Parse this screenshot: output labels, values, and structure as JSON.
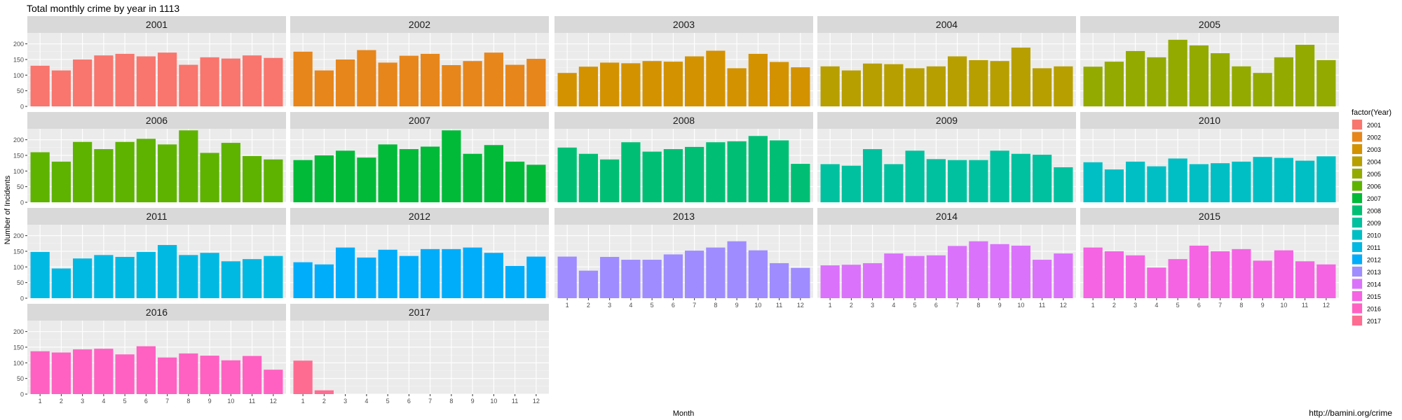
{
  "chart_data": {
    "type": "bar",
    "title": "Total monthly crime by year in 1113",
    "xlabel": "Month",
    "ylabel": "Number of Incidents",
    "source": "http://bamini.org/crime",
    "legend": {
      "title": "factor(Year)",
      "placement": "right"
    },
    "x_ticks": [
      "1",
      "2",
      "3",
      "4",
      "5",
      "6",
      "7",
      "8",
      "9",
      "10",
      "11",
      "12"
    ],
    "y_ticks": [
      0,
      50,
      100,
      150,
      200
    ],
    "ylim": [
      0,
      235
    ],
    "grid": true,
    "facets": [
      {
        "year": "2001",
        "color": "#F8766D",
        "values": [
          130,
          115,
          150,
          163,
          168,
          160,
          172,
          133,
          157,
          153,
          163,
          155
        ]
      },
      {
        "year": "2002",
        "color": "#E7861B",
        "values": [
          175,
          115,
          150,
          180,
          140,
          162,
          168,
          132,
          145,
          172,
          133,
          152
        ]
      },
      {
        "year": "2003",
        "color": "#D39200",
        "values": [
          107,
          127,
          140,
          138,
          145,
          143,
          160,
          178,
          122,
          168,
          142,
          125
        ]
      },
      {
        "year": "2004",
        "color": "#B79F00",
        "values": [
          128,
          115,
          137,
          135,
          122,
          128,
          160,
          148,
          145,
          188,
          122,
          128
        ]
      },
      {
        "year": "2005",
        "color": "#93AA00",
        "values": [
          127,
          143,
          177,
          157,
          213,
          195,
          170,
          128,
          107,
          157,
          197,
          148
        ]
      },
      {
        "year": "2006",
        "color": "#5EB300",
        "values": [
          160,
          130,
          193,
          170,
          193,
          203,
          185,
          230,
          158,
          190,
          148,
          137
        ]
      },
      {
        "year": "2007",
        "color": "#00BA38",
        "values": [
          135,
          150,
          165,
          143,
          185,
          170,
          178,
          230,
          155,
          183,
          130,
          120
        ]
      },
      {
        "year": "2008",
        "color": "#00BF74",
        "values": [
          175,
          155,
          137,
          192,
          162,
          170,
          177,
          192,
          195,
          212,
          198,
          123
        ]
      },
      {
        "year": "2009",
        "color": "#00C19F",
        "values": [
          122,
          117,
          170,
          122,
          165,
          138,
          135,
          135,
          165,
          155,
          152,
          112
        ]
      },
      {
        "year": "2010",
        "color": "#00BFC4",
        "values": [
          128,
          105,
          130,
          115,
          140,
          122,
          125,
          130,
          145,
          142,
          133,
          147
        ]
      },
      {
        "year": "2011",
        "color": "#00B9E3",
        "values": [
          148,
          95,
          127,
          138,
          132,
          148,
          170,
          138,
          145,
          118,
          125,
          135
        ]
      },
      {
        "year": "2012",
        "color": "#00ADFA",
        "values": [
          115,
          108,
          162,
          130,
          155,
          135,
          157,
          157,
          162,
          145,
          103,
          133
        ]
      },
      {
        "year": "2013",
        "color": "#9F8CFF",
        "values": [
          133,
          88,
          132,
          123,
          123,
          140,
          152,
          162,
          182,
          153,
          112,
          97
        ]
      },
      {
        "year": "2014",
        "color": "#DB72FB",
        "values": [
          105,
          107,
          112,
          143,
          135,
          137,
          167,
          182,
          173,
          168,
          123,
          143
        ]
      },
      {
        "year": "2015",
        "color": "#F564E3",
        "values": [
          162,
          150,
          137,
          98,
          125,
          168,
          150,
          157,
          120,
          153,
          118,
          108
        ]
      },
      {
        "year": "2016",
        "color": "#FF61C3",
        "values": [
          137,
          133,
          143,
          145,
          127,
          153,
          117,
          130,
          123,
          108,
          122,
          78
        ]
      },
      {
        "year": "2017",
        "color": "#FF6C91",
        "values": [
          107,
          12,
          0,
          0,
          0,
          0,
          0,
          0,
          0,
          0,
          0,
          0
        ]
      }
    ]
  }
}
